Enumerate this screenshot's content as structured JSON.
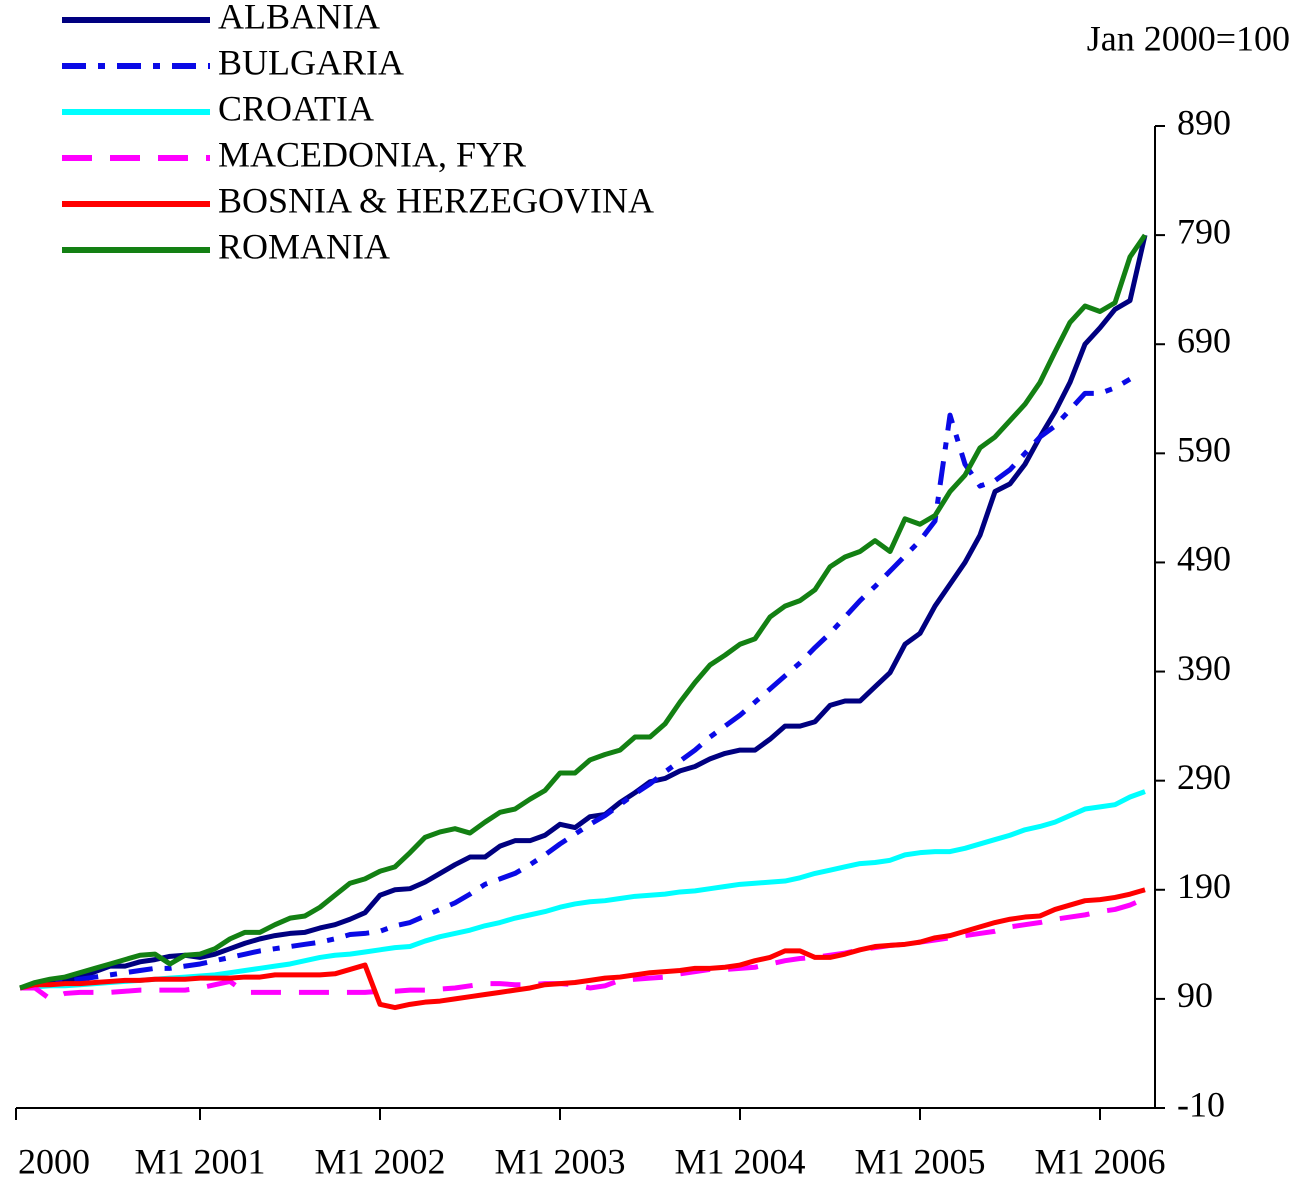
{
  "chart_data": {
    "type": "line",
    "annotations": [
      "Jan 2000=100"
    ],
    "categories": [
      "2000",
      null,
      null,
      null,
      null,
      null,
      null,
      null,
      null,
      null,
      null,
      null,
      "M1 2001",
      null,
      null,
      null,
      null,
      null,
      null,
      null,
      null,
      null,
      null,
      null,
      "M1 2002",
      null,
      null,
      null,
      null,
      null,
      null,
      null,
      null,
      null,
      null,
      null,
      "M1 2003",
      null,
      null,
      null,
      null,
      null,
      null,
      null,
      null,
      null,
      null,
      null,
      "M1 2004",
      null,
      null,
      null,
      null,
      null,
      null,
      null,
      null,
      null,
      null,
      null,
      "M1 2005",
      null,
      null,
      null,
      null,
      null,
      null,
      null,
      null,
      null,
      null,
      null,
      "M1 2006",
      null,
      null,
      null
    ],
    "ylim": [
      -10,
      890
    ],
    "yticks": [
      -10,
      90,
      190,
      290,
      390,
      490,
      590,
      690,
      790,
      890
    ],
    "legend": "top-left",
    "series": [
      {
        "name": "ALBANIA",
        "color": "#000080",
        "style": "solid",
        "values": [
          100,
          102,
          104,
          106,
          110,
          115,
          120,
          120,
          124,
          126,
          129,
          130,
          128,
          131,
          136,
          141,
          145,
          148,
          150,
          151,
          155,
          158,
          163,
          169,
          185,
          190,
          191,
          197,
          205,
          213,
          220,
          220,
          230,
          235,
          235,
          240,
          250,
          247,
          257,
          259,
          270,
          279,
          289,
          292,
          299,
          303,
          310,
          315,
          318,
          318,
          328,
          340,
          340,
          344,
          359,
          363,
          363,
          376,
          389,
          415,
          425,
          450,
          470,
          490,
          515,
          555,
          562,
          580,
          605,
          628,
          655,
          690,
          705,
          722,
          730,
          790
        ]
      },
      {
        "name": "BULGARIA",
        "color": "#0a0ae6",
        "style": "dash-dot",
        "values": [
          100,
          102,
          104,
          106,
          108,
          110,
          112,
          114,
          116,
          118,
          118,
          120,
          122,
          125,
          128,
          131,
          134,
          136,
          138,
          140,
          142,
          145,
          149,
          150,
          152,
          157,
          160,
          166,
          172,
          178,
          186,
          195,
          200,
          205,
          213,
          222,
          232,
          241,
          250,
          258,
          268,
          278,
          287,
          298,
          308,
          318,
          330,
          340,
          350,
          362,
          374,
          386,
          398,
          412,
          425,
          440,
          455,
          468,
          482,
          496,
          510,
          528,
          625,
          580,
          560,
          565,
          575,
          590,
          605,
          615,
          630,
          645,
          645,
          650,
          658,
          null
        ]
      },
      {
        "name": "CROATIA",
        "color": "#00ffff",
        "style": "solid",
        "values": [
          100,
          101,
          102,
          102,
          103,
          104,
          105,
          106,
          107,
          108,
          109,
          110,
          111,
          112,
          114,
          116,
          118,
          120,
          122,
          125,
          128,
          130,
          131,
          133,
          135,
          137,
          138,
          143,
          147,
          150,
          153,
          157,
          160,
          164,
          167,
          170,
          174,
          177,
          179,
          180,
          182,
          184,
          185,
          186,
          188,
          189,
          191,
          193,
          195,
          196,
          197,
          198,
          201,
          205,
          208,
          211,
          214,
          215,
          217,
          222,
          224,
          225,
          225,
          228,
          232,
          236,
          240,
          245,
          248,
          252,
          258,
          264,
          266,
          268,
          275,
          280
        ]
      },
      {
        "name": "MACEDONIA, FYR",
        "color": "#ff00ff",
        "style": "dashed",
        "values": [
          100,
          100,
          90,
          95,
          96,
          96,
          96,
          97,
          98,
          98,
          98,
          98,
          100,
          103,
          106,
          96,
          96,
          96,
          96,
          96,
          96,
          96,
          96,
          96,
          97,
          97,
          98,
          98,
          99,
          100,
          102,
          104,
          104,
          103,
          103,
          104,
          104,
          103,
          100,
          102,
          107,
          108,
          109,
          110,
          113,
          115,
          117,
          117,
          118,
          119,
          122,
          125,
          127,
          128,
          130,
          132,
          135,
          137,
          139,
          140,
          142,
          144,
          146,
          148,
          150,
          152,
          156,
          158,
          160,
          163,
          165,
          167,
          170,
          172,
          176,
          182
        ]
      },
      {
        "name": "BOSNIA & HERZEGOVINA",
        "color": "#ff0000",
        "style": "solid",
        "values": [
          100,
          103,
          103,
          104,
          104,
          105,
          106,
          107,
          107,
          108,
          108,
          108,
          109,
          109,
          109,
          110,
          110,
          112,
          112,
          112,
          112,
          113,
          117,
          121,
          85,
          82,
          85,
          87,
          88,
          90,
          92,
          94,
          96,
          98,
          100,
          103,
          104,
          105,
          107,
          109,
          110,
          112,
          114,
          115,
          116,
          118,
          118,
          119,
          121,
          125,
          128,
          134,
          134,
          128,
          128,
          131,
          135,
          138,
          139,
          140,
          142,
          146,
          148,
          152,
          156,
          160,
          163,
          165,
          166,
          172,
          176,
          180,
          181,
          183,
          186,
          190
        ]
      },
      {
        "name": "ROMANIA",
        "color": "#138013",
        "style": "solid",
        "values": [
          100,
          105,
          108,
          110,
          114,
          118,
          122,
          126,
          130,
          131,
          122,
          130,
          131,
          136,
          145,
          151,
          151,
          158,
          164,
          166,
          174,
          185,
          196,
          200,
          207,
          211,
          224,
          238,
          243,
          246,
          242,
          252,
          261,
          264,
          273,
          281,
          297,
          297,
          309,
          314,
          318,
          330,
          330,
          342,
          362,
          380,
          396,
          405,
          415,
          420,
          440,
          450,
          455,
          465,
          486,
          495,
          500,
          510,
          500,
          530,
          525,
          533,
          555,
          570,
          595,
          605,
          620,
          635,
          655,
          683,
          710,
          725,
          720,
          728,
          770,
          790
        ]
      }
    ]
  }
}
